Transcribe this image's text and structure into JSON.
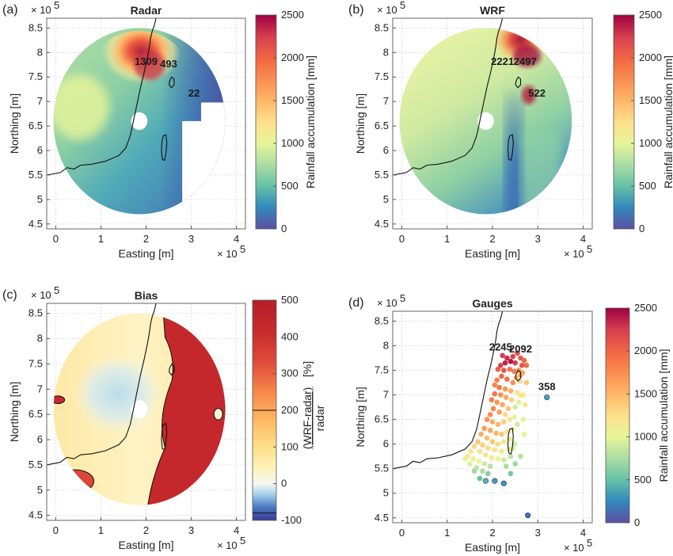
{
  "figure": {
    "panels": [
      {
        "id": "a",
        "panel_label": "(a)",
        "title": "Radar",
        "xlabel": "Easting [m]",
        "ylabel": "Northing [m]",
        "x_exponent": "× 10",
        "x_exponent_power": "5",
        "y_exponent": "× 10",
        "y_exponent_power": "5",
        "xticks": [
          "0",
          "1",
          "2",
          "3",
          "4"
        ],
        "yticks": [
          "4.5",
          "5",
          "5.5",
          "6",
          "6.5",
          "7",
          "7.5",
          "8",
          "8.5"
        ],
        "colorbar_label": "Rainfall accumulation [mm]",
        "colorbar_ticks": [
          "0",
          "500",
          "1000",
          "1500",
          "2000",
          "2500"
        ],
        "annotations": [
          "1309",
          "493",
          "22"
        ]
      },
      {
        "id": "b",
        "panel_label": "(b)",
        "title": "WRF",
        "xlabel": "Easting [m]",
        "ylabel": "Northing [m]",
        "x_exponent": "× 10",
        "x_exponent_power": "5",
        "y_exponent": "× 10",
        "y_exponent_power": "5",
        "xticks": [
          "0",
          "1",
          "2",
          "3",
          "4"
        ],
        "yticks": [
          "4.5",
          "5",
          "5.5",
          "6",
          "6.5",
          "7",
          "7.5",
          "8",
          "8.5"
        ],
        "colorbar_label": "Rainfall accumulation [mm]",
        "colorbar_ticks": [
          "0",
          "500",
          "1000",
          "1500",
          "2000",
          "2500"
        ],
        "annotations": [
          "2221",
          "2497",
          "522"
        ]
      },
      {
        "id": "c",
        "panel_label": "(c)",
        "title": "Bias",
        "xlabel": "Easting [m]",
        "ylabel": "Northing [m]",
        "x_exponent": "× 10",
        "x_exponent_power": "5",
        "y_exponent": "× 10",
        "y_exponent_power": "5",
        "xticks": [
          "0",
          "1",
          "2",
          "3",
          "4"
        ],
        "yticks": [
          "4.5",
          "5",
          "5.5",
          "6",
          "6.5",
          "7",
          "7.5",
          "8",
          "8.5"
        ],
        "colorbar_label_top": "(WRF-radar)",
        "colorbar_label_bottom": "radar",
        "colorbar_label_unit": "[%]",
        "colorbar_ticks": [
          "-100",
          "0",
          "100",
          "200",
          "300",
          "400",
          "500"
        ],
        "annotations": []
      },
      {
        "id": "d",
        "panel_label": "(d)",
        "title": "Gauges",
        "xlabel": "Easting [m]",
        "ylabel": "Northing [m]",
        "x_exponent": "× 10",
        "x_exponent_power": "5",
        "y_exponent": "× 10",
        "y_exponent_power": "5",
        "xticks": [
          "0",
          "1",
          "2",
          "3",
          "4"
        ],
        "yticks": [
          "4.5",
          "5",
          "5.5",
          "6",
          "6.5",
          "7",
          "7.5",
          "8",
          "8.5"
        ],
        "colorbar_label": "Rainfall accumulation [mm]",
        "colorbar_ticks": [
          "0",
          "500",
          "1000",
          "1500",
          "2000",
          "2500"
        ],
        "annotations": [
          "2245",
          "2092",
          "358"
        ]
      }
    ]
  },
  "chart_data": [
    {
      "type": "heatmap",
      "panel": "a",
      "title": "Radar",
      "xlabel": "Easting [m]",
      "ylabel": "Northing [m]",
      "xlim": [
        -20000,
        420000
      ],
      "ylim": [
        440000,
        870000
      ],
      "clim": [
        0,
        2500
      ],
      "colormap": "spectral-reversed",
      "radar_center": [
        185000,
        660000
      ],
      "radar_radius": 190000,
      "inner_hole_radius": 18000,
      "annotations": [
        {
          "text": "1309",
          "x": 200000,
          "y": 775000
        },
        {
          "text": "493",
          "x": 250000,
          "y": 770000
        },
        {
          "text": "22",
          "x": 306000,
          "y": 710000
        }
      ]
    },
    {
      "type": "heatmap",
      "panel": "b",
      "title": "WRF",
      "xlabel": "Easting [m]",
      "ylabel": "Northing [m]",
      "xlim": [
        -20000,
        420000
      ],
      "ylim": [
        440000,
        870000
      ],
      "clim": [
        0,
        2500
      ],
      "colormap": "spectral-reversed",
      "radar_center": [
        185000,
        660000
      ],
      "radar_radius": 190000,
      "inner_hole_radius": 18000,
      "annotations": [
        {
          "text": "2221",
          "x": 222000,
          "y": 775000
        },
        {
          "text": "2497",
          "x": 272000,
          "y": 775000
        },
        {
          "text": "522",
          "x": 298000,
          "y": 710000
        }
      ]
    },
    {
      "type": "heatmap",
      "panel": "c",
      "title": "Bias",
      "xlabel": "Easting [m]",
      "ylabel": "Northing [m]",
      "xlim": [
        -20000,
        420000
      ],
      "ylim": [
        440000,
        870000
      ],
      "clim": [
        -100,
        500
      ],
      "colormap": "diverging",
      "colorbar_contour_levels": [
        200,
        -80
      ],
      "radar_center": [
        185000,
        660000
      ],
      "radar_radius": 190000,
      "inner_hole_radius": 18000
    },
    {
      "type": "scatter",
      "panel": "d",
      "title": "Gauges",
      "xlabel": "Easting [m]",
      "ylabel": "Northing [m]",
      "xlim": [
        -20000,
        420000
      ],
      "ylim": [
        440000,
        870000
      ],
      "clim": [
        0,
        2500
      ],
      "colormap": "spectral-reversed",
      "points": [
        [
          222000,
          780000,
          2245
        ],
        [
          232000,
          775000,
          2300
        ],
        [
          245000,
          778000,
          2200
        ],
        [
          255000,
          785000,
          2150
        ],
        [
          262000,
          775000,
          2092
        ],
        [
          270000,
          770000,
          2000
        ],
        [
          275000,
          760000,
          1950
        ],
        [
          265000,
          760000,
          2100
        ],
        [
          250000,
          765000,
          2250
        ],
        [
          240000,
          768000,
          2400
        ],
        [
          228000,
          765000,
          2350
        ],
        [
          218000,
          760000,
          2200
        ],
        [
          212000,
          752000,
          2050
        ],
        [
          225000,
          750000,
          2100
        ],
        [
          238000,
          752000,
          1900
        ],
        [
          248000,
          748000,
          1850
        ],
        [
          258000,
          750000,
          1700
        ],
        [
          266000,
          745000,
          1600
        ],
        [
          252000,
          735000,
          1500
        ],
        [
          260000,
          728000,
          1300
        ],
        [
          245000,
          725000,
          1750
        ],
        [
          232000,
          732000,
          1950
        ],
        [
          220000,
          738000,
          2000
        ],
        [
          210000,
          730000,
          1850
        ],
        [
          205000,
          720000,
          1800
        ],
        [
          215000,
          715000,
          1900
        ],
        [
          228000,
          712000,
          1700
        ],
        [
          240000,
          708000,
          1550
        ],
        [
          255000,
          705000,
          1200
        ],
        [
          262000,
          698000,
          1100
        ],
        [
          258000,
          685000,
          950
        ],
        [
          250000,
          675000,
          900
        ],
        [
          242000,
          690000,
          1350
        ],
        [
          230000,
          695000,
          1600
        ],
        [
          218000,
          700000,
          1750
        ],
        [
          205000,
          702000,
          1900
        ],
        [
          198000,
          690000,
          1850
        ],
        [
          210000,
          685000,
          1700
        ],
        [
          222000,
          680000,
          1600
        ],
        [
          235000,
          672000,
          1400
        ],
        [
          228000,
          660000,
          1300
        ],
        [
          215000,
          665000,
          1650
        ],
        [
          202000,
          672000,
          1800
        ],
        [
          195000,
          660000,
          1750
        ],
        [
          188000,
          650000,
          1700
        ],
        [
          200000,
          645000,
          1550
        ],
        [
          212000,
          640000,
          1500
        ],
        [
          225000,
          645000,
          1350
        ],
        [
          238000,
          650000,
          1150
        ],
        [
          248000,
          655000,
          1000
        ],
        [
          255000,
          640000,
          900
        ],
        [
          245000,
          630000,
          1050
        ],
        [
          232000,
          625000,
          1250
        ],
        [
          220000,
          620000,
          1400
        ],
        [
          208000,
          622000,
          1500
        ],
        [
          195000,
          628000,
          1600
        ],
        [
          182000,
          632000,
          1650
        ],
        [
          175000,
          620000,
          1550
        ],
        [
          188000,
          612000,
          1450
        ],
        [
          200000,
          605000,
          1400
        ],
        [
          212000,
          600000,
          1300
        ],
        [
          225000,
          605000,
          1200
        ],
        [
          238000,
          610000,
          1050
        ],
        [
          248000,
          600000,
          900
        ],
        [
          235000,
          590000,
          1000
        ],
        [
          220000,
          585000,
          1150
        ],
        [
          205000,
          588000,
          1250
        ],
        [
          190000,
          592000,
          1300
        ],
        [
          178000,
          598000,
          1350
        ],
        [
          168000,
          605000,
          1400
        ],
        [
          160000,
          595000,
          1300
        ],
        [
          172000,
          585000,
          1250
        ],
        [
          185000,
          578000,
          1200
        ],
        [
          198000,
          572000,
          1100
        ],
        [
          212000,
          570000,
          1000
        ],
        [
          225000,
          568000,
          900
        ],
        [
          240000,
          575000,
          800
        ],
        [
          152000,
          585000,
          1200
        ],
        [
          145000,
          575000,
          1150
        ],
        [
          158000,
          570000,
          1100
        ],
        [
          170000,
          565000,
          1000
        ],
        [
          182000,
          560000,
          900
        ],
        [
          195000,
          555000,
          800
        ],
        [
          140000,
          570000,
          1100
        ],
        [
          150000,
          560000,
          950
        ],
        [
          165000,
          552000,
          850
        ],
        [
          178000,
          545000,
          750
        ],
        [
          190000,
          540000,
          600
        ],
        [
          160000,
          545000,
          700
        ],
        [
          172000,
          530000,
          500
        ],
        [
          185000,
          525000,
          450
        ],
        [
          205000,
          525000,
          350
        ],
        [
          225000,
          520000,
          300
        ],
        [
          240000,
          540000,
          550
        ],
        [
          250000,
          560000,
          700
        ],
        [
          262000,
          575000,
          800
        ],
        [
          245000,
          590000,
          950
        ],
        [
          230000,
          555000,
          750
        ],
        [
          270000,
          620000,
          1000
        ],
        [
          268000,
          650000,
          1050
        ],
        [
          272000,
          680000,
          1150
        ],
        [
          267000,
          700000,
          1250
        ],
        [
          275000,
          725000,
          1400
        ],
        [
          262000,
          740000,
          1650
        ],
        [
          320000,
          695000,
          358
        ],
        [
          278000,
          455000,
          150
        ]
      ],
      "annotations": [
        {
          "text": "2245",
          "x": 218000,
          "y": 790000
        },
        {
          "text": "2092",
          "x": 262000,
          "y": 786000
        },
        {
          "text": "358",
          "x": 320000,
          "y": 710000
        }
      ]
    }
  ]
}
